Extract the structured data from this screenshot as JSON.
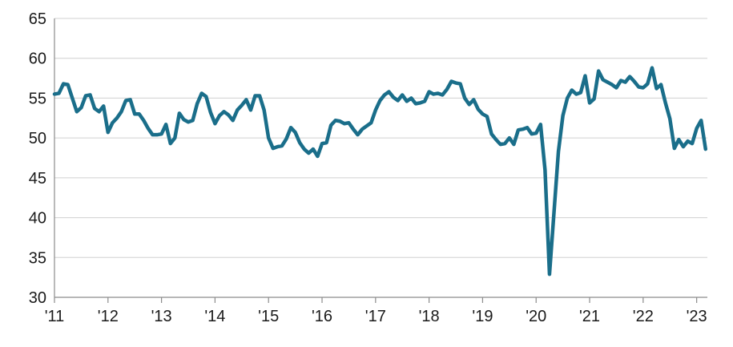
{
  "chart_data": {
    "type": "line",
    "title": "",
    "xlabel": "",
    "ylabel": "",
    "ylim": [
      30,
      65
    ],
    "xlim": [
      2011,
      2023.2
    ],
    "yticks": [
      30,
      35,
      40,
      45,
      50,
      55,
      60,
      65
    ],
    "xticks": [
      {
        "value": 2011,
        "label": "'11"
      },
      {
        "value": 2012,
        "label": "'12"
      },
      {
        "value": 2013,
        "label": "'13"
      },
      {
        "value": 2014,
        "label": "'14"
      },
      {
        "value": 2015,
        "label": "'15"
      },
      {
        "value": 2016,
        "label": "'16"
      },
      {
        "value": 2017,
        "label": "'17"
      },
      {
        "value": 2018,
        "label": "'18"
      },
      {
        "value": 2019,
        "label": "'19"
      },
      {
        "value": 2020,
        "label": "'20"
      },
      {
        "value": 2021,
        "label": "'21"
      },
      {
        "value": 2022,
        "label": "'22"
      },
      {
        "value": 2023,
        "label": "'23"
      }
    ],
    "grid": true,
    "legend": false,
    "series": [
      {
        "color": "#1a6e8a",
        "x_start": 2011,
        "step": 0.0833333,
        "values": [
          55.5,
          55.6,
          56.8,
          56.7,
          55.0,
          53.3,
          53.8,
          55.3,
          55.4,
          53.7,
          53.3,
          54.0,
          50.7,
          51.9,
          52.5,
          53.3,
          54.7,
          54.8,
          53.0,
          53.0,
          52.2,
          51.2,
          50.4,
          50.4,
          50.5,
          51.7,
          49.3,
          50.0,
          53.1,
          52.3,
          52.0,
          52.2,
          54.3,
          55.6,
          55.2,
          53.2,
          51.8,
          52.8,
          53.3,
          52.9,
          52.2,
          53.5,
          54.1,
          54.8,
          53.5,
          55.3,
          55.3,
          53.5,
          50.0,
          48.7,
          48.9,
          49.0,
          49.9,
          51.3,
          50.7,
          49.4,
          48.6,
          48.1,
          48.6,
          47.7,
          49.3,
          49.4,
          51.6,
          52.2,
          52.1,
          51.8,
          51.9,
          51.1,
          50.4,
          51.1,
          51.5,
          51.9,
          53.5,
          54.7,
          55.4,
          55.8,
          55.1,
          54.7,
          55.4,
          54.6,
          55.0,
          54.3,
          54.4,
          54.6,
          55.8,
          55.5,
          55.6,
          55.4,
          56.1,
          57.1,
          56.9,
          56.8,
          55.0,
          54.2,
          54.8,
          53.6,
          53.0,
          52.7,
          50.5,
          49.8,
          49.2,
          49.3,
          50.0,
          49.2,
          51.0,
          51.1,
          51.3,
          50.5,
          50.6,
          51.7,
          46.0,
          32.9,
          40.6,
          48.3,
          52.8,
          55.0,
          56.0,
          55.5,
          55.7,
          57.8,
          54.4,
          54.9,
          58.4,
          57.3,
          57.0,
          56.7,
          56.3,
          57.2,
          57.0,
          57.7,
          57.1,
          56.4,
          56.3,
          56.8,
          58.8,
          56.2,
          56.7,
          54.4,
          52.4,
          48.7,
          49.8,
          48.9,
          49.6,
          49.3,
          51.2,
          52.2,
          48.6
        ]
      }
    ]
  }
}
